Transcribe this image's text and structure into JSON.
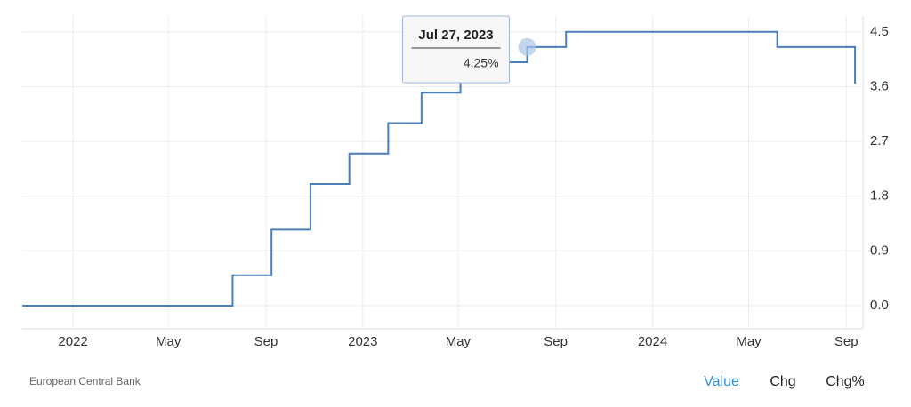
{
  "chart_data": {
    "type": "line",
    "step": true,
    "x": [
      "2021-10-29",
      "2022-07-21",
      "2022-09-08",
      "2022-10-27",
      "2022-12-15",
      "2023-02-02",
      "2023-03-16",
      "2023-05-04",
      "2023-06-15",
      "2023-07-27",
      "2023-09-14",
      "2024-06-06",
      "2024-09-12"
    ],
    "series": [
      {
        "name": "Value",
        "color": "#4a7ebb",
        "values": [
          0,
          0.5,
          1.25,
          2.0,
          2.5,
          3.0,
          3.5,
          3.75,
          4.0,
          4.25,
          4.5,
          4.25,
          3.65
        ]
      }
    ],
    "xlim": [
      "2021-10-29",
      "2024-09-22"
    ],
    "xticks": [
      {
        "value": "2022-01-01",
        "label": "2022"
      },
      {
        "value": "2022-05-01",
        "label": "May"
      },
      {
        "value": "2022-09-01",
        "label": "Sep"
      },
      {
        "value": "2023-01-01",
        "label": "2023"
      },
      {
        "value": "2023-05-01",
        "label": "May"
      },
      {
        "value": "2023-09-01",
        "label": "Sep"
      },
      {
        "value": "2024-01-01",
        "label": "2024"
      },
      {
        "value": "2024-05-01",
        "label": "May"
      },
      {
        "value": "2024-09-01",
        "label": "Sep"
      }
    ],
    "ylim": [
      -0.38,
      4.76
    ],
    "yticks": [
      {
        "value": 0,
        "label": "0.0"
      },
      0.9,
      1.8,
      2.7,
      3.6,
      4.5
    ],
    "grid": true,
    "tooltip": {
      "x": "2023-07-27",
      "value": 4.25,
      "date": "Jul 27, 2023",
      "value_label": "4.25%"
    }
  },
  "footer": {
    "source": "European Central Bank",
    "tabs": [
      "Value",
      "Chg",
      "Chg%"
    ]
  }
}
